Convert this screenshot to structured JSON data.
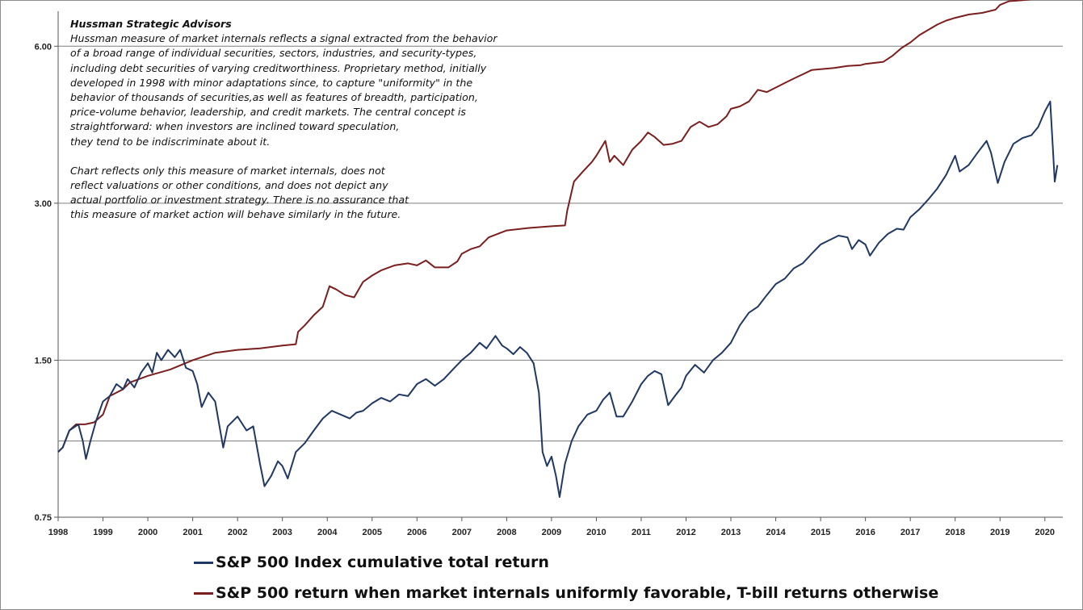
{
  "chart_data": {
    "type": "line",
    "y_scale": "log",
    "ylim": [
      0.75,
      7.0
    ],
    "xlim": [
      1998.0,
      2020.4
    ],
    "y_ticks": [
      "0.75",
      "1.50",
      "3.00",
      "6.00"
    ],
    "x_ticks": [
      "1998",
      "1999",
      "2000",
      "2001",
      "2002",
      "2003",
      "2004",
      "2005",
      "2006",
      "2007",
      "2008",
      "2009",
      "2010",
      "2011",
      "2012",
      "2013",
      "2014",
      "2015",
      "2016",
      "2017",
      "2018",
      "2019",
      "2020"
    ],
    "grid": "horizontal",
    "annotation": {
      "title": "Hussman Strategic Advisors",
      "paragraph1": [
        "Hussman measure of market internals reflects a signal extracted from the behavior",
        "of a broad range of individual securities, sectors, industries, and security-types,",
        "including debt securities of varying creditworthiness.  Proprietary method, initially",
        "developed in 1998 with minor adaptations  since, to capture \"uniformity\" in the",
        "behavior of thousands  of securities,as well as features of breadth, participation,",
        "price-volume behavior, leadership, and credit markets.  The central concept is",
        "straightforward:  when investors are inclined toward speculation,",
        "they tend to be indiscriminate about it."
      ],
      "paragraph2": [
        "Chart reflects only this measure of market internals, does not",
        "reflect valuations  or other conditions, and does not depict any",
        "actual portfolio or investment strategy.  There is no assurance that",
        "this measure of market action will behave similarly in the future."
      ]
    },
    "series": [
      {
        "name": "S&P 500 Index cumulative total return",
        "color": "#1f3864",
        "points": [
          [
            1998.0,
            1.0
          ],
          [
            1998.1,
            1.02
          ],
          [
            1998.25,
            1.1
          ],
          [
            1998.45,
            1.13
          ],
          [
            1998.55,
            1.05
          ],
          [
            1998.62,
            0.97
          ],
          [
            1998.72,
            1.05
          ],
          [
            1998.85,
            1.15
          ],
          [
            1999.0,
            1.25
          ],
          [
            1999.15,
            1.28
          ],
          [
            1999.3,
            1.35
          ],
          [
            1999.45,
            1.32
          ],
          [
            1999.55,
            1.38
          ],
          [
            1999.7,
            1.33
          ],
          [
            1999.85,
            1.42
          ],
          [
            2000.0,
            1.48
          ],
          [
            2000.1,
            1.42
          ],
          [
            2000.2,
            1.55
          ],
          [
            2000.3,
            1.5
          ],
          [
            2000.45,
            1.57
          ],
          [
            2000.6,
            1.52
          ],
          [
            2000.72,
            1.57
          ],
          [
            2000.85,
            1.45
          ],
          [
            2001.0,
            1.43
          ],
          [
            2001.1,
            1.35
          ],
          [
            2001.2,
            1.22
          ],
          [
            2001.35,
            1.3
          ],
          [
            2001.5,
            1.25
          ],
          [
            2001.68,
            1.02
          ],
          [
            2001.78,
            1.12
          ],
          [
            2002.0,
            1.17
          ],
          [
            2002.2,
            1.1
          ],
          [
            2002.35,
            1.12
          ],
          [
            2002.5,
            0.95
          ],
          [
            2002.6,
            0.86
          ],
          [
            2002.75,
            0.9
          ],
          [
            2002.9,
            0.96
          ],
          [
            2003.0,
            0.94
          ],
          [
            2003.12,
            0.89
          ],
          [
            2003.3,
            1.0
          ],
          [
            2003.5,
            1.04
          ],
          [
            2003.7,
            1.1
          ],
          [
            2003.9,
            1.16
          ],
          [
            2004.1,
            1.2
          ],
          [
            2004.3,
            1.18
          ],
          [
            2004.5,
            1.16
          ],
          [
            2004.65,
            1.19
          ],
          [
            2004.8,
            1.2
          ],
          [
            2005.0,
            1.24
          ],
          [
            2005.2,
            1.27
          ],
          [
            2005.4,
            1.25
          ],
          [
            2005.6,
            1.29
          ],
          [
            2005.8,
            1.28
          ],
          [
            2006.0,
            1.35
          ],
          [
            2006.2,
            1.38
          ],
          [
            2006.4,
            1.34
          ],
          [
            2006.6,
            1.38
          ],
          [
            2006.8,
            1.44
          ],
          [
            2007.0,
            1.5
          ],
          [
            2007.2,
            1.55
          ],
          [
            2007.4,
            1.62
          ],
          [
            2007.55,
            1.58
          ],
          [
            2007.75,
            1.67
          ],
          [
            2007.9,
            1.6
          ],
          [
            2008.0,
            1.58
          ],
          [
            2008.15,
            1.54
          ],
          [
            2008.3,
            1.59
          ],
          [
            2008.45,
            1.55
          ],
          [
            2008.6,
            1.48
          ],
          [
            2008.72,
            1.3
          ],
          [
            2008.8,
            1.0
          ],
          [
            2008.9,
            0.94
          ],
          [
            2009.0,
            0.98
          ],
          [
            2009.1,
            0.9
          ],
          [
            2009.18,
            0.82
          ],
          [
            2009.3,
            0.95
          ],
          [
            2009.45,
            1.05
          ],
          [
            2009.6,
            1.12
          ],
          [
            2009.8,
            1.18
          ],
          [
            2010.0,
            1.2
          ],
          [
            2010.15,
            1.26
          ],
          [
            2010.3,
            1.3
          ],
          [
            2010.45,
            1.17
          ],
          [
            2010.6,
            1.17
          ],
          [
            2010.8,
            1.25
          ],
          [
            2011.0,
            1.35
          ],
          [
            2011.15,
            1.4
          ],
          [
            2011.3,
            1.43
          ],
          [
            2011.45,
            1.41
          ],
          [
            2011.6,
            1.23
          ],
          [
            2011.75,
            1.28
          ],
          [
            2011.9,
            1.33
          ],
          [
            2012.0,
            1.4
          ],
          [
            2012.2,
            1.47
          ],
          [
            2012.4,
            1.42
          ],
          [
            2012.6,
            1.5
          ],
          [
            2012.8,
            1.55
          ],
          [
            2013.0,
            1.62
          ],
          [
            2013.2,
            1.75
          ],
          [
            2013.4,
            1.85
          ],
          [
            2013.6,
            1.9
          ],
          [
            2013.8,
            2.0
          ],
          [
            2014.0,
            2.1
          ],
          [
            2014.2,
            2.15
          ],
          [
            2014.4,
            2.25
          ],
          [
            2014.6,
            2.3
          ],
          [
            2014.8,
            2.4
          ],
          [
            2015.0,
            2.5
          ],
          [
            2015.2,
            2.55
          ],
          [
            2015.4,
            2.6
          ],
          [
            2015.6,
            2.58
          ],
          [
            2015.7,
            2.45
          ],
          [
            2015.85,
            2.55
          ],
          [
            2016.0,
            2.5
          ],
          [
            2016.1,
            2.38
          ],
          [
            2016.3,
            2.52
          ],
          [
            2016.5,
            2.62
          ],
          [
            2016.7,
            2.68
          ],
          [
            2016.85,
            2.67
          ],
          [
            2017.0,
            2.82
          ],
          [
            2017.2,
            2.92
          ],
          [
            2017.4,
            3.05
          ],
          [
            2017.6,
            3.2
          ],
          [
            2017.8,
            3.4
          ],
          [
            2018.0,
            3.7
          ],
          [
            2018.1,
            3.45
          ],
          [
            2018.3,
            3.55
          ],
          [
            2018.5,
            3.75
          ],
          [
            2018.7,
            3.95
          ],
          [
            2018.8,
            3.75
          ],
          [
            2018.95,
            3.28
          ],
          [
            2019.1,
            3.6
          ],
          [
            2019.3,
            3.9
          ],
          [
            2019.5,
            4.0
          ],
          [
            2019.7,
            4.05
          ],
          [
            2019.85,
            4.2
          ],
          [
            2020.0,
            4.5
          ],
          [
            2020.12,
            4.7
          ],
          [
            2020.18,
            3.8
          ],
          [
            2020.22,
            3.3
          ],
          [
            2020.28,
            3.55
          ]
        ]
      },
      {
        "name": "S&P 500 return when market internals uniformly favorable, T-bill returns otherwise",
        "color": "#7b1e1e",
        "points": [
          [
            1998.0,
            1.0
          ],
          [
            1998.1,
            1.02
          ],
          [
            1998.25,
            1.1
          ],
          [
            1998.4,
            1.13
          ],
          [
            1998.6,
            1.13
          ],
          [
            1998.8,
            1.14
          ],
          [
            1998.9,
            1.16
          ],
          [
            1999.0,
            1.18
          ],
          [
            1999.15,
            1.28
          ],
          [
            1999.3,
            1.3
          ],
          [
            1999.45,
            1.32
          ],
          [
            1999.6,
            1.36
          ],
          [
            2000.0,
            1.4
          ],
          [
            2000.5,
            1.44
          ],
          [
            2001.0,
            1.5
          ],
          [
            2001.5,
            1.55
          ],
          [
            2002.0,
            1.57
          ],
          [
            2002.5,
            1.58
          ],
          [
            2003.0,
            1.6
          ],
          [
            2003.3,
            1.61
          ],
          [
            2003.35,
            1.7
          ],
          [
            2003.5,
            1.75
          ],
          [
            2003.7,
            1.83
          ],
          [
            2003.9,
            1.9
          ],
          [
            2004.05,
            2.08
          ],
          [
            2004.2,
            2.05
          ],
          [
            2004.4,
            2.0
          ],
          [
            2004.6,
            1.98
          ],
          [
            2004.8,
            2.12
          ],
          [
            2005.0,
            2.18
          ],
          [
            2005.2,
            2.23
          ],
          [
            2005.5,
            2.28
          ],
          [
            2005.8,
            2.3
          ],
          [
            2006.0,
            2.28
          ],
          [
            2006.2,
            2.33
          ],
          [
            2006.4,
            2.26
          ],
          [
            2006.7,
            2.26
          ],
          [
            2006.9,
            2.32
          ],
          [
            2007.0,
            2.4
          ],
          [
            2007.2,
            2.45
          ],
          [
            2007.4,
            2.48
          ],
          [
            2007.6,
            2.58
          ],
          [
            2008.0,
            2.66
          ],
          [
            2008.5,
            2.69
          ],
          [
            2009.0,
            2.71
          ],
          [
            2009.3,
            2.72
          ],
          [
            2009.35,
            2.9
          ],
          [
            2009.5,
            3.3
          ],
          [
            2009.7,
            3.45
          ],
          [
            2009.9,
            3.6
          ],
          [
            2010.0,
            3.7
          ],
          [
            2010.2,
            3.95
          ],
          [
            2010.3,
            3.6
          ],
          [
            2010.4,
            3.7
          ],
          [
            2010.6,
            3.55
          ],
          [
            2010.8,
            3.8
          ],
          [
            2011.0,
            3.95
          ],
          [
            2011.15,
            4.1
          ],
          [
            2011.3,
            4.02
          ],
          [
            2011.5,
            3.88
          ],
          [
            2011.7,
            3.9
          ],
          [
            2011.9,
            3.95
          ],
          [
            2012.1,
            4.2
          ],
          [
            2012.3,
            4.3
          ],
          [
            2012.5,
            4.2
          ],
          [
            2012.7,
            4.25
          ],
          [
            2012.9,
            4.4
          ],
          [
            2013.0,
            4.55
          ],
          [
            2013.2,
            4.6
          ],
          [
            2013.4,
            4.7
          ],
          [
            2013.6,
            4.95
          ],
          [
            2013.8,
            4.9
          ],
          [
            2014.0,
            5.0
          ],
          [
            2014.2,
            5.1
          ],
          [
            2014.4,
            5.2
          ],
          [
            2014.6,
            5.3
          ],
          [
            2014.8,
            5.4
          ],
          [
            2015.0,
            5.42
          ],
          [
            2015.3,
            5.45
          ],
          [
            2015.6,
            5.5
          ],
          [
            2015.9,
            5.52
          ],
          [
            2016.0,
            5.55
          ],
          [
            2016.4,
            5.6
          ],
          [
            2016.6,
            5.75
          ],
          [
            2016.8,
            5.95
          ],
          [
            2017.0,
            6.1
          ],
          [
            2017.2,
            6.3
          ],
          [
            2017.4,
            6.45
          ],
          [
            2017.6,
            6.6
          ],
          [
            2017.8,
            6.72
          ],
          [
            2018.0,
            6.8
          ],
          [
            2018.3,
            6.9
          ],
          [
            2018.6,
            6.95
          ],
          [
            2018.9,
            7.05
          ],
          [
            2019.0,
            7.2
          ],
          [
            2019.2,
            7.32
          ],
          [
            2019.5,
            7.35
          ],
          [
            2019.8,
            7.4
          ],
          [
            2020.0,
            7.45
          ],
          [
            2020.1,
            7.48
          ],
          [
            2020.3,
            7.4
          ]
        ]
      }
    ]
  }
}
